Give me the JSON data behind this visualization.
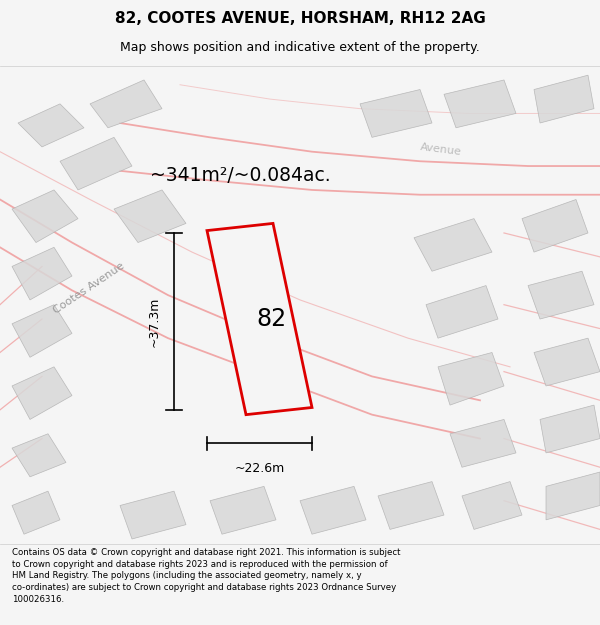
{
  "title": "82, COOTES AVENUE, HORSHAM, RH12 2AG",
  "subtitle": "Map shows position and indicative extent of the property.",
  "area_text": "~341m²/~0.084ac.",
  "number_label": "82",
  "dim_width": "~22.6m",
  "dim_height": "~37.3m",
  "road_label_1": "Cootes Avenue",
  "road_label_2": "Avenue",
  "footer_lines": [
    "Contains OS data © Crown copyright and database right 2021. This information is subject",
    "to Crown copyright and database rights 2023 and is reproduced with the permission of",
    "HM Land Registry. The polygons (including the associated geometry, namely x, y",
    "co-ordinates) are subject to Crown copyright and database rights 2023 Ordnance Survey",
    "100026316."
  ],
  "bg_color": "#f5f5f5",
  "map_bg": "#ffffff",
  "plot_color": "#dd0000",
  "block_color": "#d8d8d8",
  "road_line_color": "#f0a0a0",
  "title_fontsize": 11,
  "subtitle_fontsize": 9,
  "footer_fontsize": 6.2
}
